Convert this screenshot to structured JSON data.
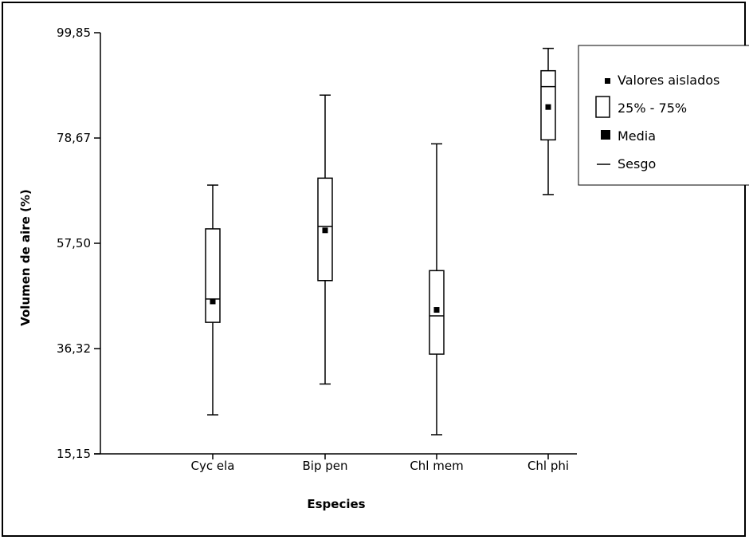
{
  "chart_data": {
    "type": "boxplot",
    "xlabel": "Especies",
    "ylabel": "Volumen de aire (%)",
    "ylim": [
      15.15,
      99.85
    ],
    "yticks": [
      "15,15",
      "36,32",
      "57,50",
      "78,67",
      "99,85"
    ],
    "ytick_values": [
      15.15,
      36.32,
      57.5,
      78.67,
      99.85
    ],
    "categories": [
      "Cyc ela",
      "Bip pen",
      "Chl mem",
      "Chl phi"
    ],
    "boxes": [
      {
        "category": "Cyc ela",
        "whisker_low": 23.0,
        "q1": 41.6,
        "median": 46.3,
        "q3": 60.4,
        "whisker_high": 69.2,
        "mean": 45.8
      },
      {
        "category": "Bip pen",
        "whisker_low": 29.2,
        "q1": 50.0,
        "median": 60.9,
        "q3": 70.6,
        "whisker_high": 87.3,
        "mean": 60.1
      },
      {
        "category": "Chl mem",
        "whisker_low": 19.0,
        "q1": 35.2,
        "median": 42.9,
        "q3": 52.0,
        "whisker_high": 77.5,
        "mean": 44.1
      },
      {
        "category": "Chl phi",
        "whisker_low": 67.3,
        "q1": 78.3,
        "median": 89.0,
        "q3": 92.2,
        "whisker_high": 96.7,
        "mean": 84.9
      }
    ],
    "legend": {
      "position": "top-right",
      "items": [
        {
          "key": "outliers",
          "label": "Valores aislados"
        },
        {
          "key": "box",
          "label": "25% - 75%"
        },
        {
          "key": "mean",
          "label": "Media"
        },
        {
          "key": "median",
          "label": "Sesgo"
        }
      ]
    },
    "colors": {
      "stroke": "#000000",
      "fill": "#ffffff"
    }
  }
}
